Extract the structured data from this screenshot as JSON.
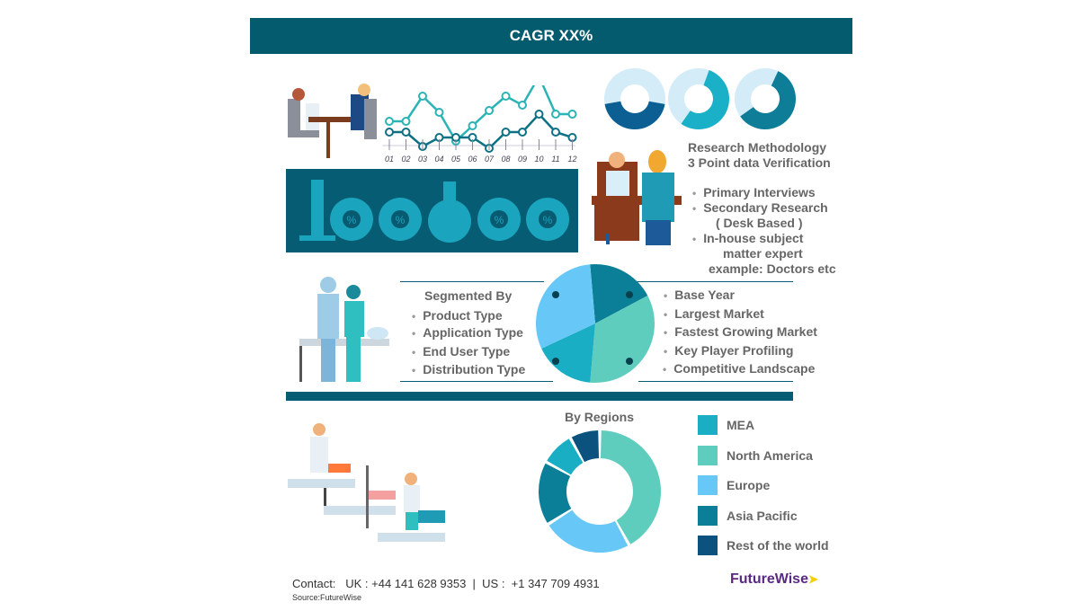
{
  "header": {
    "title": "CAGR XX%"
  },
  "line_chart": {
    "x_ticks": [
      "01",
      "02",
      "03",
      "04",
      "05",
      "06",
      "07",
      "08",
      "09",
      "10",
      "11",
      "12"
    ]
  },
  "methodology": {
    "title": "Research Methodology",
    "subtitle": "3 Point data Verification",
    "items": [
      "Primary Interviews",
      "Secondary Research",
      "( Desk Based )",
      "In-house subject",
      "matter expert",
      "example: Doctors etc"
    ]
  },
  "segments": {
    "title": "Segmented By",
    "items": [
      "Product Type",
      "Application Type",
      "End User Type",
      "Distribution Type"
    ]
  },
  "coverage": {
    "items": [
      "Base Year",
      "Largest Market",
      "Fastest Growing Market",
      "Key Player Profiling",
      "Competitive Landscape"
    ]
  },
  "regions": {
    "title": "By Regions",
    "legend": [
      {
        "name": "MEA",
        "color": "#1aaec4"
      },
      {
        "name": "North America",
        "color": "#5ecdbd"
      },
      {
        "name": "Europe",
        "color": "#67c8f8"
      },
      {
        "name": "Asia Pacific",
        "color": "#0b7f98"
      },
      {
        "name": "Rest of the world",
        "color": "#0b527e"
      }
    ],
    "chart_data": {
      "type": "donut",
      "order": [
        "North America",
        "Europe",
        "Asia Pacific",
        "MEA",
        "Rest of the world"
      ],
      "values": [
        42,
        24,
        17,
        9,
        8
      ]
    }
  },
  "footer": {
    "contact": "Contact:   UK : +44 141 628 9353  |  US :  +1 347 709 4931",
    "source": "Source:FutureWise",
    "logo": "FutureWise"
  }
}
